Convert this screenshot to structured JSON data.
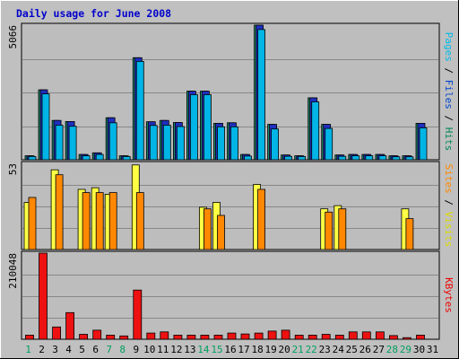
{
  "chart_data": {
    "type": "bar",
    "title": "Daily usage for June 2008",
    "categories": [
      "1",
      "2",
      "3",
      "4",
      "5",
      "6",
      "7",
      "8",
      "9",
      "10",
      "11",
      "12",
      "13",
      "14",
      "15",
      "16",
      "17",
      "18",
      "19",
      "20",
      "21",
      "22",
      "23",
      "24",
      "25",
      "26",
      "27",
      "28",
      "29",
      "30",
      "31"
    ],
    "weekend_days": [
      "1",
      "7",
      "8",
      "14",
      "15",
      "21",
      "22",
      "28",
      "29"
    ],
    "panels": [
      {
        "id": "hits",
        "ymax": 5066,
        "ymax_label": "5066",
        "right_label": [
          {
            "text": "Pages",
            "color": "#00bbe8"
          },
          {
            "text": " / ",
            "color": "#000000"
          },
          {
            "text": "Files",
            "color": "#0044cc"
          },
          {
            "text": " / ",
            "color": "#000000"
          },
          {
            "text": "Hits",
            "color": "#008855"
          }
        ],
        "series": [
          {
            "name": "Hits",
            "color": "#1e8a6e",
            "values": [
              150,
              2630,
              1480,
              1440,
              200,
              260,
              1580,
              150,
              3840,
              1430,
              1480,
              1400,
              2580,
              2580,
              1370,
              1390,
              200,
              5066,
              1330,
              180,
              150,
              2330,
              1330,
              180,
              200,
              200,
              200,
              150,
              150,
              1370,
              0
            ]
          },
          {
            "name": "Files",
            "color": "#1f2fbf",
            "values": [
              150,
              2630,
              1480,
              1440,
              200,
              260,
              1580,
              150,
              3840,
              1430,
              1480,
              1400,
              2580,
              2580,
              1370,
              1390,
              200,
              5066,
              1330,
              180,
              150,
              2330,
              1330,
              180,
              200,
              200,
              200,
              150,
              150,
              1370,
              0
            ]
          },
          {
            "name": "Pages",
            "color": "#00b4e6",
            "values": [
              120,
              2480,
              1300,
              1260,
              150,
              200,
              1390,
              120,
              3700,
              1290,
              1300,
              1250,
              2450,
              2450,
              1240,
              1240,
              140,
              4900,
              1160,
              130,
              120,
              2180,
              1180,
              130,
              150,
              150,
              150,
              110,
              110,
              1200,
              0
            ]
          }
        ]
      },
      {
        "id": "visits",
        "ymax": 53,
        "ymax_label": "53",
        "right_label": [
          {
            "text": "Sites",
            "color": "#ff8800"
          },
          {
            "text": " / ",
            "color": "#000000"
          },
          {
            "text": "Visits",
            "color": "#dddd00"
          }
        ],
        "series": [
          {
            "name": "Visits",
            "color": "#ffff44",
            "values": [
              29,
              0,
              49,
              0,
              37,
              38,
              34,
              0,
              52,
              0,
              0,
              0,
              0,
              26,
              29,
              0,
              0,
              40,
              0,
              0,
              0,
              0,
              25,
              27,
              0,
              0,
              0,
              0,
              25,
              0,
              0
            ]
          },
          {
            "name": "Sites",
            "color": "#ff8800",
            "values": [
              32,
              0,
              46,
              0,
              35,
              35,
              35,
              0,
              35,
              0,
              0,
              0,
              0,
              25,
              21,
              0,
              0,
              37,
              0,
              0,
              0,
              0,
              23,
              25,
              0,
              0,
              0,
              0,
              19,
              0,
              0
            ]
          }
        ]
      },
      {
        "id": "kbytes",
        "ymax": 210048,
        "ymax_label": "210048",
        "right_label": [
          {
            "text": "KBytes",
            "color": "#ee0000"
          }
        ],
        "series": [
          {
            "name": "KBytes",
            "color": "#ee1111",
            "values": [
              10000,
              210048,
              30000,
              65000,
              12000,
              22000,
              10000,
              8000,
              120000,
              15000,
              18000,
              10000,
              10000,
              10000,
              10000,
              15000,
              13000,
              15000,
              20000,
              22000,
              10000,
              10000,
              12000,
              10000,
              18000,
              18000,
              18000,
              9000,
              4000,
              10000,
              0
            ]
          }
        ]
      }
    ]
  }
}
